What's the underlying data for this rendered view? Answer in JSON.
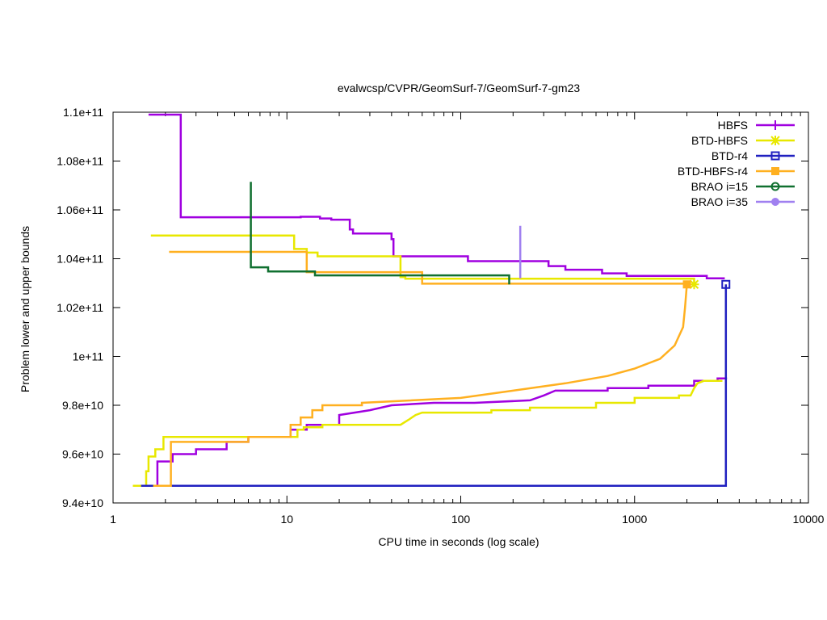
{
  "chart_data": {
    "type": "line",
    "title": "evalwcsp/CVPR/GeomSurf-7/GeomSurf-7-gm23",
    "xlabel": "CPU time in seconds (log scale)",
    "ylabel": "Problem lower and upper bounds",
    "x_scale": "log",
    "xlim": [
      1,
      10000
    ],
    "ylim": [
      94000000000.0,
      110000000000.0
    ],
    "x_ticks": [
      {
        "value": 1,
        "label": "1"
      },
      {
        "value": 10,
        "label": "10"
      },
      {
        "value": 100,
        "label": "100"
      },
      {
        "value": 1000,
        "label": "1000"
      },
      {
        "value": 10000,
        "label": "10000"
      }
    ],
    "y_ticks": [
      {
        "value": 94000000000.0,
        "label": "9.4e+10"
      },
      {
        "value": 96000000000.0,
        "label": "9.6e+10"
      },
      {
        "value": 98000000000.0,
        "label": "9.8e+10"
      },
      {
        "value": 100000000000.0,
        "label": "1e+11"
      },
      {
        "value": 102000000000.0,
        "label": "1.02e+11"
      },
      {
        "value": 104000000000.0,
        "label": "1.04e+11"
      },
      {
        "value": 106000000000.0,
        "label": "1.06e+11"
      },
      {
        "value": 108000000000.0,
        "label": "1.08e+11"
      },
      {
        "value": 110000000000.0,
        "label": "1.1e+11"
      }
    ],
    "grid": false,
    "legend_position": "top-right",
    "series": [
      {
        "name": "HBFS",
        "color": "#a000e0",
        "marker": "plus",
        "lines": [
          [
            [
              1.65,
              94700000000.0
            ],
            [
              1.8,
              94700000000.0
            ],
            [
              1.8,
              95700000000.0
            ],
            [
              2.2,
              95700000000.0
            ],
            [
              2.2,
              96000000000.0
            ],
            [
              3.0,
              96000000000.0
            ],
            [
              3.0,
              96200000000.0
            ],
            [
              4.5,
              96200000000.0
            ],
            [
              4.5,
              96500000000.0
            ],
            [
              6.0,
              96500000000.0
            ],
            [
              6.0,
              96700000000.0
            ],
            [
              10.5,
              96700000000.0
            ],
            [
              10.5,
              97000000000.0
            ],
            [
              13.0,
              97000000000.0
            ],
            [
              13.0,
              97200000000.0
            ],
            [
              20.0,
              97200000000.0
            ],
            [
              20.0,
              97600000000.0
            ],
            [
              30.0,
              97800000000.0
            ],
            [
              40.0,
              98000000000.0
            ],
            [
              70.0,
              98100000000.0
            ],
            [
              120.0,
              98100000000.0
            ],
            [
              250.0,
              98200000000.0
            ],
            [
              300.0,
              98400000000.0
            ],
            [
              350.0,
              98600000000.0
            ],
            [
              700.0,
              98600000000.0
            ],
            [
              700.0,
              98700000000.0
            ],
            [
              1200.0,
              98700000000.0
            ],
            [
              1200.0,
              98800000000.0
            ],
            [
              2200.0,
              98800000000.0
            ],
            [
              2200.0,
              99000000000.0
            ],
            [
              3000.0,
              99000000000.0
            ],
            [
              3000.0,
              99100000000.0
            ],
            [
              3400.0,
              99100000000.0
            ]
          ],
          [
            [
              1.6,
              109900000000.0
            ],
            [
              2.45,
              109900000000.0
            ],
            [
              2.45,
              105700000000.0
            ],
            [
              12.0,
              105700000000.0
            ],
            [
              12.0,
              105720000000.0
            ],
            [
              15.5,
              105720000000.0
            ],
            [
              15.5,
              105650000000.0
            ],
            [
              18.0,
              105650000000.0
            ],
            [
              18.0,
              105600000000.0
            ],
            [
              23.0,
              105600000000.0
            ],
            [
              23.0,
              105200000000.0
            ],
            [
              24.0,
              105200000000.0
            ],
            [
              24.0,
              105030000000.0
            ],
            [
              40.0,
              105030000000.0
            ],
            [
              40.0,
              104800000000.0
            ],
            [
              41.0,
              104800000000.0
            ],
            [
              41.0,
              104100000000.0
            ],
            [
              110.0,
              104100000000.0
            ],
            [
              110.0,
              103900000000.0
            ],
            [
              320.0,
              103900000000.0
            ],
            [
              320.0,
              103700000000.0
            ],
            [
              400.0,
              103700000000.0
            ],
            [
              400.0,
              103550000000.0
            ],
            [
              650.0,
              103550000000.0
            ],
            [
              650.0,
              103400000000.0
            ],
            [
              900.0,
              103400000000.0
            ],
            [
              900.0,
              103300000000.0
            ],
            [
              2600.0,
              103300000000.0
            ],
            [
              2600.0,
              103200000000.0
            ],
            [
              3300.0,
              103200000000.0
            ]
          ]
        ]
      },
      {
        "name": "BTD-HBFS",
        "color": "#e8e800",
        "marker": "star",
        "lines": [
          [
            [
              1.3,
              94700000000.0
            ],
            [
              1.55,
              94700000000.0
            ],
            [
              1.55,
              95300000000.0
            ],
            [
              1.6,
              95300000000.0
            ],
            [
              1.6,
              95900000000.0
            ],
            [
              1.75,
              95900000000.0
            ],
            [
              1.75,
              96200000000.0
            ],
            [
              1.95,
              96200000000.0
            ],
            [
              1.95,
              96700000000.0
            ],
            [
              11.5,
              96700000000.0
            ],
            [
              11.5,
              97000000000.0
            ],
            [
              12.5,
              97000000000.0
            ],
            [
              12.5,
              97100000000.0
            ],
            [
              16.0,
              97100000000.0
            ],
            [
              16.0,
              97200000000.0
            ],
            [
              45.0,
              97200000000.0
            ],
            [
              50.0,
              97400000000.0
            ],
            [
              55.0,
              97600000000.0
            ],
            [
              60.0,
              97700000000.0
            ],
            [
              150.0,
              97700000000.0
            ],
            [
              150.0,
              97800000000.0
            ],
            [
              250.0,
              97800000000.0
            ],
            [
              250.0,
              97900000000.0
            ],
            [
              600.0,
              97900000000.0
            ],
            [
              600.0,
              98100000000.0
            ],
            [
              1000.0,
              98100000000.0
            ],
            [
              1000.0,
              98300000000.0
            ],
            [
              1800.0,
              98300000000.0
            ],
            [
              1800.0,
              98400000000.0
            ],
            [
              2100.0,
              98400000000.0
            ],
            [
              2200.0,
              98700000000.0
            ],
            [
              2300.0,
              98900000000.0
            ],
            [
              2500.0,
              99000000000.0
            ],
            [
              3200.0,
              99000000000.0
            ]
          ],
          [
            [
              1.65,
              104950000000.0
            ],
            [
              11.0,
              104950000000.0
            ],
            [
              11.0,
              104400000000.0
            ],
            [
              13.0,
              104400000000.0
            ],
            [
              13.0,
              104250000000.0
            ],
            [
              15.0,
              104250000000.0
            ],
            [
              15.0,
              104100000000.0
            ],
            [
              45.0,
              104100000000.0
            ],
            [
              45.0,
              103250000000.0
            ],
            [
              48.0,
              103250000000.0
            ],
            [
              48.0,
              103180000000.0
            ],
            [
              2200.0,
              103180000000.0
            ],
            [
              2200.0,
              102950000000.0
            ]
          ]
        ],
        "markers": [
          [
            2200.0,
            102950000000.0
          ]
        ]
      },
      {
        "name": "BTD-r4",
        "color": "#2020c0",
        "marker": "square",
        "lines": [
          [
            [
              1.45,
              94700000000.0
            ],
            [
              3350.0,
              94700000000.0
            ],
            [
              3350.0,
              102950000000.0
            ]
          ]
        ],
        "markers": [
          [
            3350.0,
            102950000000.0
          ]
        ]
      },
      {
        "name": "BTD-HBFS-r4",
        "color": "#ffb020",
        "marker": "filled-square",
        "lines": [
          [
            [
              1.7,
              94700000000.0
            ],
            [
              2.15,
              94700000000.0
            ],
            [
              2.15,
              96500000000.0
            ],
            [
              6.0,
              96500000000.0
            ],
            [
              6.0,
              96700000000.0
            ],
            [
              10.5,
              96700000000.0
            ],
            [
              10.5,
              97200000000.0
            ],
            [
              12.0,
              97200000000.0
            ],
            [
              12.0,
              97500000000.0
            ],
            [
              14.0,
              97500000000.0
            ],
            [
              14.0,
              97800000000.0
            ],
            [
              16.0,
              97800000000.0
            ],
            [
              16.0,
              98000000000.0
            ],
            [
              27.0,
              98000000000.0
            ],
            [
              27.0,
              98100000000.0
            ],
            [
              100.0,
              98300000000.0
            ],
            [
              200.0,
              98600000000.0
            ],
            [
              400.0,
              98900000000.0
            ],
            [
              700.0,
              99200000000.0
            ],
            [
              1000.0,
              99500000000.0
            ],
            [
              1400.0,
              99900000000.0
            ],
            [
              1700.0,
              100450000000.0
            ],
            [
              1900.0,
              101200000000.0
            ],
            [
              1950.0,
              102000000000.0
            ],
            [
              2000.0,
              102950000000.0
            ]
          ],
          [
            [
              2.1,
              104280000000.0
            ],
            [
              13.0,
              104280000000.0
            ],
            [
              13.0,
              103450000000.0
            ],
            [
              60.0,
              103450000000.0
            ],
            [
              60.0,
              102980000000.0
            ],
            [
              2000.0,
              102980000000.0
            ]
          ]
        ],
        "markers": [
          [
            2000.0,
            102950000000.0
          ]
        ]
      },
      {
        "name": "BRAO i=15",
        "color": "#107030",
        "marker": "circle",
        "lines": [
          [
            [
              6.2,
              107150000000.0
            ],
            [
              6.2,
              103650000000.0
            ],
            [
              7.8,
              103650000000.0
            ],
            [
              7.8,
              103480000000.0
            ],
            [
              14.5,
              103480000000.0
            ],
            [
              14.5,
              103320000000.0
            ],
            [
              190.0,
              103320000000.0
            ],
            [
              190.0,
              102950000000.0
            ]
          ]
        ]
      },
      {
        "name": "BRAO i=35",
        "color": "#a080f0",
        "marker": "filled-circle",
        "lines": [
          [
            [
              220.0,
              105350000000.0
            ],
            [
              220.0,
              103200000000.0
            ]
          ]
        ]
      }
    ]
  }
}
